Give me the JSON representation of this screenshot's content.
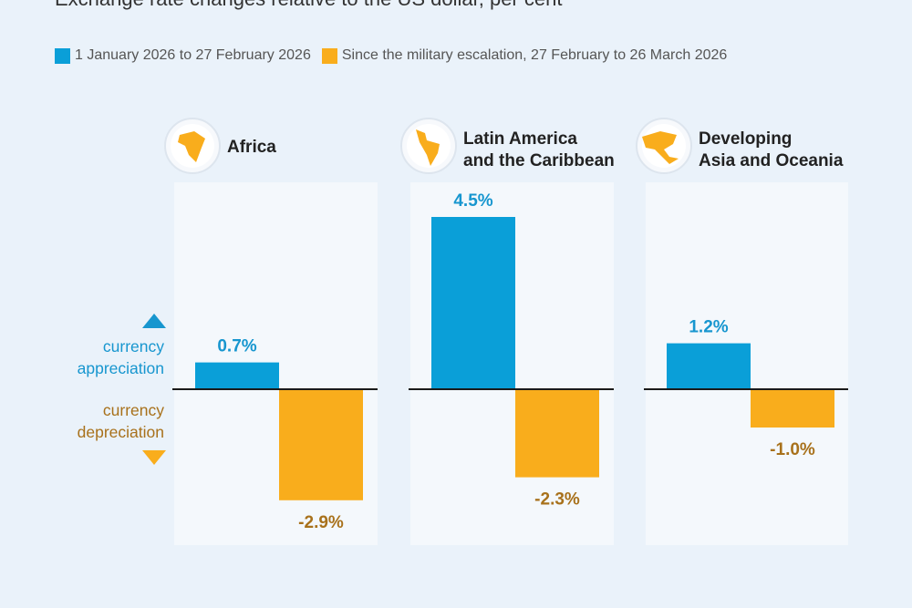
{
  "page_title": "Exchange rate changes relative to the US dollar, per cent",
  "legend": {
    "before": "1 January 2026 to 27 February 2026",
    "after": "Since the military escalation, 27 February to 26 March 2026"
  },
  "labels": {
    "appreciation": [
      "currency",
      "appreciation"
    ],
    "depreciation": [
      "currency",
      "depreciation"
    ]
  },
  "colors": {
    "before": "#0a9fd8",
    "after": "#f9ad1c",
    "appreciation_text": "#1796cf",
    "depreciation_text": "#a8711b",
    "value_before_text": "#1796cf",
    "value_after_text": "#a8711b",
    "background": "#eaf2fa",
    "panel": "#f4f8fc"
  },
  "chart_data": {
    "type": "bar",
    "unit": "%",
    "series": [
      {
        "name": "1 January 2026 to 27 February 2026",
        "values": [
          0.7,
          4.5,
          1.2
        ]
      },
      {
        "name": "Since the military escalation, 27 February to 26 March 2026",
        "values": [
          -2.9,
          -2.3,
          -1.0
        ]
      }
    ],
    "categories": [
      "Africa",
      "Latin America and the Caribbean",
      "Developing Asia and Oceania"
    ],
    "panel_titles": [
      [
        "Africa"
      ],
      [
        "Latin America",
        "and the Caribbean"
      ],
      [
        "Developing",
        "Asia and Oceania"
      ]
    ],
    "value_labels": [
      [
        "0.7%",
        "-2.9%"
      ],
      [
        "4.5%",
        "-2.3%"
      ],
      [
        "1.2%",
        "-1.0%"
      ]
    ],
    "panel_icons": [
      "africa-globe-icon",
      "latin-america-globe-icon",
      "asia-oceania-globe-icon"
    ]
  }
}
